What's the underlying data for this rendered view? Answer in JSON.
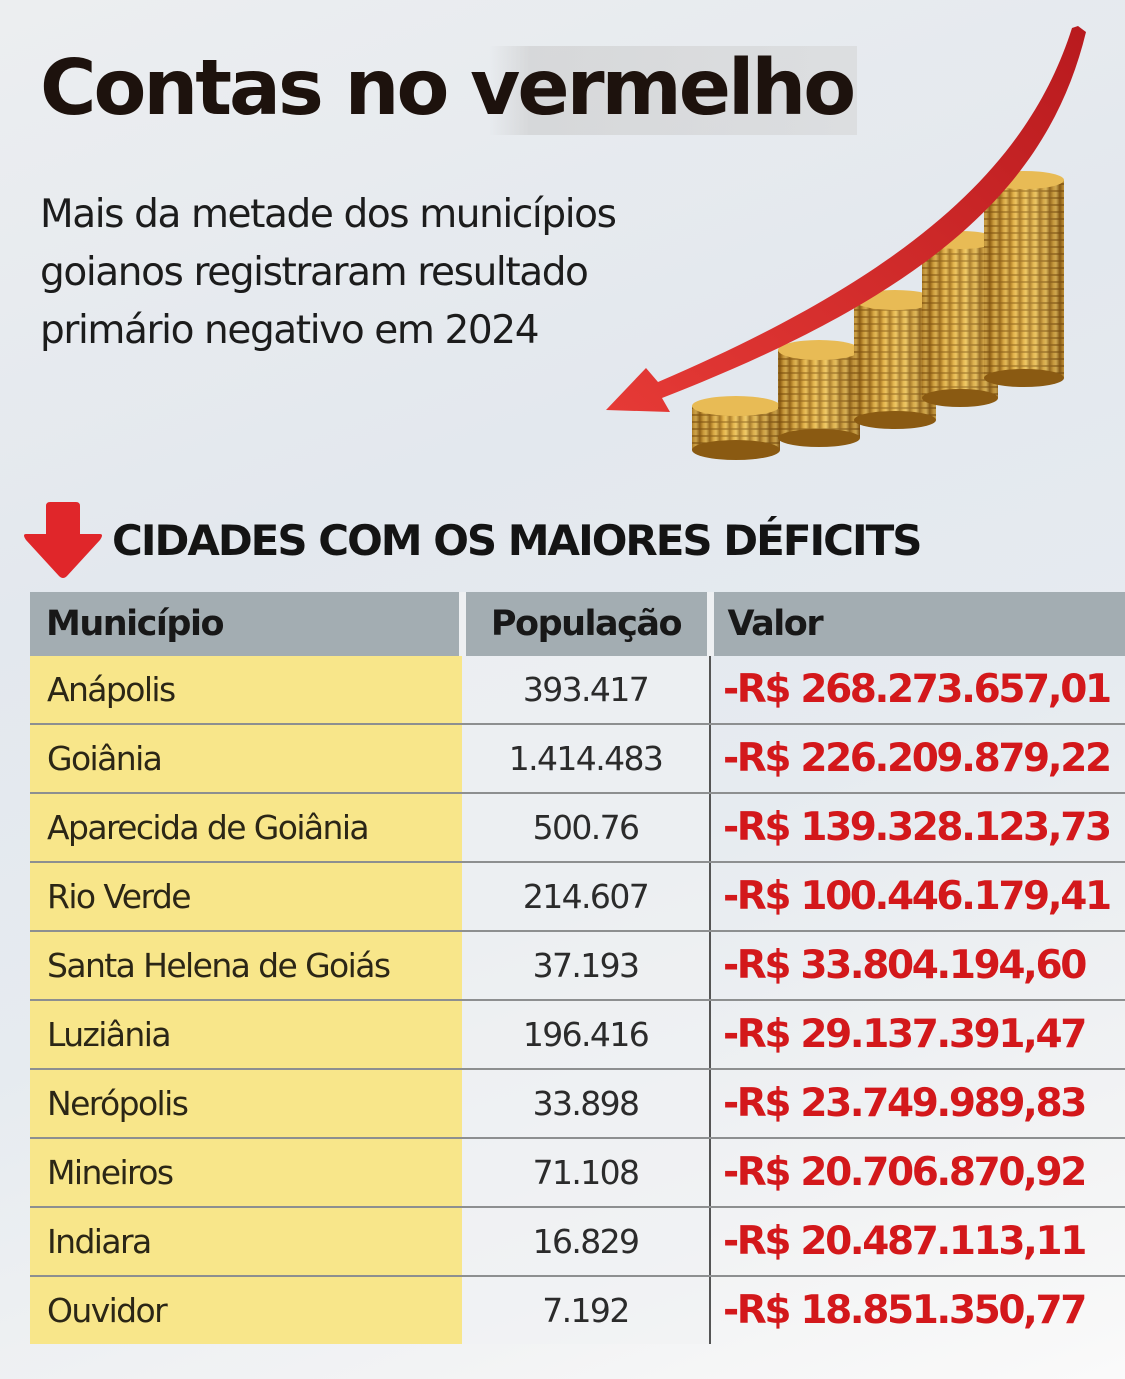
{
  "header": {
    "title": "Contas no vermelho",
    "subtitle": "Mais da metade dos municípios goianos registraram resultado primário negativo em 2024"
  },
  "illustration": {
    "name": "falling-arrow-over-coin-stacks",
    "arrow_color": "#d42a2a",
    "coin_color": "#c9972f"
  },
  "section": {
    "icon": "down-arrow-icon",
    "icon_color": "#e0262a",
    "title": "CIDADES COM OS MAIORES DÉFICITS"
  },
  "table": {
    "columns": [
      "Município",
      "População",
      "Valor"
    ],
    "rows": [
      {
        "municipio": "Anápolis",
        "populacao": "393.417",
        "valor": "-R$ 268.273.657,01"
      },
      {
        "municipio": "Goiânia",
        "populacao": "1.414.483",
        "valor": "-R$ 226.209.879,22"
      },
      {
        "municipio": "Aparecida de Goiânia",
        "populacao": "500.76",
        "valor": "-R$ 139.328.123,73"
      },
      {
        "municipio": "Rio Verde",
        "populacao": "214.607",
        "valor": "-R$ 100.446.179,41"
      },
      {
        "municipio": "Santa Helena de Goiás",
        "populacao": "37.193",
        "valor": "-R$ 33.804.194,60"
      },
      {
        "municipio": "Luziânia",
        "populacao": "196.416",
        "valor": "-R$ 29.137.391,47"
      },
      {
        "municipio": "Nerópolis",
        "populacao": "33.898",
        "valor": "-R$ 23.749.989,83"
      },
      {
        "municipio": "Mineiros",
        "populacao": "71.108",
        "valor": "-R$ 20.706.870,92"
      },
      {
        "municipio": "Indiara",
        "populacao": "16.829",
        "valor": "-R$ 20.487.113,11"
      },
      {
        "municipio": "Ouvidor",
        "populacao": "7.192",
        "valor": "-R$ 18.851.350,77"
      }
    ]
  },
  "colors": {
    "city_column_bg": "#f8e68a",
    "header_bg": "#a3adb2",
    "value_red": "#d3181b"
  }
}
